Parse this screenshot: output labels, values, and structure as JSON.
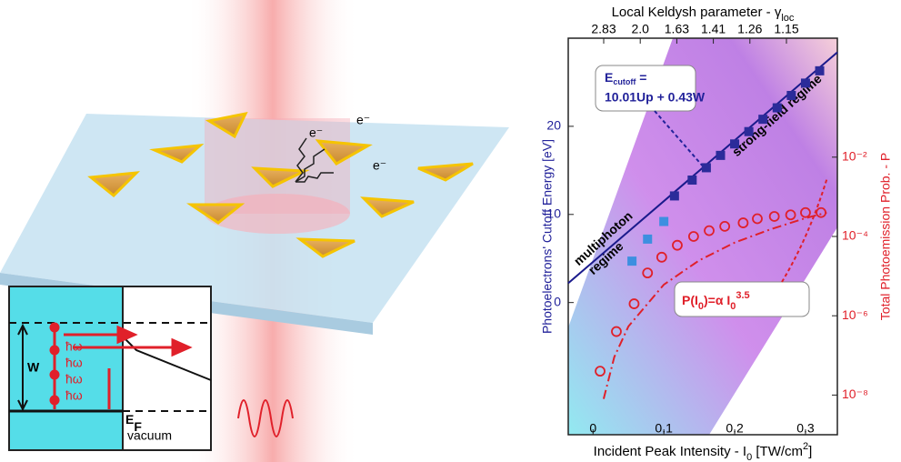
{
  "chart_data": {
    "type": "scatter",
    "x_title_parts": [
      "Incident Peak Intensity - I",
      "0",
      " [TW/cm",
      "2",
      "]"
    ],
    "x2_title_parts": [
      "Local Keldysh parameter - γ",
      "loc"
    ],
    "y_title": "Photoelectrons' Cutoff Energy [eV]",
    "y2_title": "Total Photoemission Prob. - P",
    "xlim": [
      -0.035,
      0.345
    ],
    "xticks": [
      0,
      0.1,
      0.2,
      0.3
    ],
    "x2ticks": [
      2.83,
      {
        "value": 2,
        "label": "2.0"
      },
      1.63,
      1.41,
      1.26,
      1.15
    ],
    "ylim": [
      -15,
      30
    ],
    "yticks": [
      0,
      10,
      20
    ],
    "y2lim": [
      1e-09,
      10
    ],
    "y2log": true,
    "y2ticks": [
      {
        "value": 0.01,
        "label": "10⁻²"
      },
      {
        "value": 0.0001,
        "label": "10⁻⁴"
      },
      {
        "value": 1e-06,
        "label": "10⁻⁶"
      },
      {
        "value": 1e-08,
        "label": "10⁻⁸"
      }
    ],
    "series": [
      {
        "mark": "line",
        "color": "#1a1a8c",
        "x": [
          -0.035,
          0.345
        ],
        "values": [
          2.2,
          28.4
        ]
      },
      {
        "mark": "square",
        "color": "#2b2b9a",
        "x": [
          0.115,
          0.14,
          0.16,
          0.18,
          0.2,
          0.22,
          0.24,
          0.26,
          0.28,
          0.3,
          0.32
        ],
        "values": [
          12.1,
          13.9,
          15.3,
          16.7,
          18.0,
          19.4,
          20.8,
          22.1,
          23.5,
          24.9,
          26.3
        ]
      },
      {
        "mark": "square",
        "color": "#3d8fe0",
        "x": [
          0.055,
          0.077,
          0.1
        ],
        "values": [
          4.7,
          7.2,
          9.2
        ]
      },
      {
        "mark": "dashdot",
        "color": "#e0202a",
        "axis": "y2",
        "x": [
          0.015,
          0.03,
          0.05,
          0.1,
          0.15,
          0.2,
          0.25,
          0.3,
          0.33
        ],
        "values": [
          8e-09,
          9.1e-08,
          5.4e-07,
          6.1e-06,
          2.5e-05,
          7e-05,
          0.00015,
          0.00029,
          0.0004
        ]
      },
      {
        "mark": "circle",
        "color": "#e0202a",
        "axis": "y2",
        "x": [
          0.01,
          0.033,
          0.058,
          0.077,
          0.097,
          0.119,
          0.142,
          0.164,
          0.186,
          0.212,
          0.232,
          0.256,
          0.279,
          0.3,
          0.322
        ],
        "values": [
          4e-08,
          4e-07,
          2e-06,
          1.2e-05,
          3e-05,
          6e-05,
          0.0001,
          0.00014,
          0.00018,
          0.00022,
          0.00028,
          0.00032,
          0.00035,
          0.0004,
          0.0004
        ]
      }
    ],
    "annotations": [
      {
        "parts": [
          "E",
          "cutoff",
          " ="
        ]
      },
      {
        "parts": [
          "10.01Up + 0.43W"
        ]
      },
      {
        "parts": [
          "strong-field regime"
        ]
      },
      {
        "parts": [
          "multiphoton"
        ]
      },
      {
        "parts": [
          "regime"
        ]
      },
      {
        "parts": [
          "P(I",
          "0",
          ")=α I",
          "0",
          "3.5"
        ]
      }
    ]
  },
  "illustration": {
    "electrons": [
      "e⁻",
      "e⁻",
      "e⁻"
    ],
    "photons": [
      "ħω",
      "ħω",
      "ħω",
      "ħω"
    ],
    "work_function": "W",
    "fermi": [
      "E",
      "F"
    ],
    "vacuum": "vacuum"
  }
}
